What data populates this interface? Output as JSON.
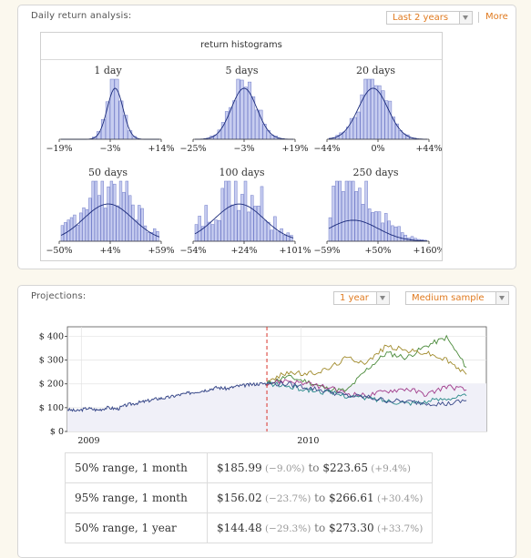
{
  "daily_pod": {
    "title": "Daily return analysis:",
    "range_select": "Last 2 years",
    "more_label": "More",
    "histogram_title": "return histograms",
    "histograms": [
      {
        "label": "1 day",
        "ticks": [
          "−19%",
          "−3%",
          "+14%"
        ]
      },
      {
        "label": "5 days",
        "ticks": [
          "−25%",
          "−3%",
          "+19%"
        ]
      },
      {
        "label": "20 days",
        "ticks": [
          "−44%",
          "0%",
          "+44%"
        ]
      },
      {
        "label": "50 days",
        "ticks": [
          "−50%",
          "+4%",
          "+59%"
        ]
      },
      {
        "label": "100 days",
        "ticks": [
          "−54%",
          "+24%",
          "+101%"
        ]
      },
      {
        "label": "250 days",
        "ticks": [
          "−59%",
          "+50%",
          "+160%"
        ]
      }
    ]
  },
  "projections_pod": {
    "title": "Projections:",
    "period_select": "1 year",
    "sample_select": "Medium sample",
    "chart_data": {
      "type": "line",
      "y_tick_labels": [
        "$ 400",
        "$ 300",
        "$ 200",
        "$ 100",
        "$ 0"
      ],
      "y_ticks": [
        400,
        300,
        200,
        100,
        0
      ],
      "x_tick_labels": [
        "2009",
        "2010"
      ],
      "ylim": [
        0,
        440
      ],
      "grid": true,
      "projection_start_marker": "dashed red vertical line",
      "history": {
        "x": [
          0.0,
          0.05,
          0.1,
          0.15,
          0.2,
          0.25,
          0.3,
          0.35,
          0.4,
          0.45,
          0.5,
          0.55,
          0.6,
          0.65,
          0.7,
          0.75,
          0.8,
          0.85,
          0.9,
          0.95,
          1.0
        ],
        "values": [
          92,
          86,
          98,
          90,
          100,
          95,
          112,
          120,
          128,
          138,
          142,
          152,
          160,
          168,
          175,
          185,
          180,
          190,
          195,
          200,
          202
        ]
      },
      "projections": [
        {
          "color": "#4a8a3a",
          "x": [
            1.0,
            1.1,
            1.2,
            1.3,
            1.4,
            1.5,
            1.6,
            1.7,
            1.8,
            1.9,
            2.0
          ],
          "values": [
            202,
            230,
            210,
            180,
            170,
            260,
            330,
            310,
            360,
            395,
            270
          ]
        },
        {
          "color": "#a08a2a",
          "x": [
            1.0,
            1.1,
            1.2,
            1.3,
            1.4,
            1.5,
            1.6,
            1.7,
            1.8,
            1.9,
            2.0
          ],
          "values": [
            202,
            250,
            240,
            260,
            310,
            290,
            360,
            340,
            330,
            300,
            240
          ]
        },
        {
          "color": "#a03a8a",
          "x": [
            1.0,
            1.1,
            1.2,
            1.3,
            1.4,
            1.5,
            1.6,
            1.7,
            1.8,
            1.9,
            2.0
          ],
          "values": [
            202,
            215,
            200,
            185,
            160,
            150,
            170,
            180,
            155,
            190,
            175
          ]
        },
        {
          "color": "#2a8a8a",
          "x": [
            1.0,
            1.1,
            1.2,
            1.3,
            1.4,
            1.5,
            1.6,
            1.7,
            1.8,
            1.9,
            2.0
          ],
          "values": [
            202,
            190,
            175,
            165,
            150,
            140,
            130,
            120,
            125,
            140,
            150
          ]
        },
        {
          "color": "#3a4a8a",
          "x": [
            1.0,
            1.1,
            1.2,
            1.3,
            1.4,
            1.5,
            1.6,
            1.7,
            1.8,
            1.9,
            2.0
          ],
          "values": [
            202,
            200,
            185,
            170,
            150,
            145,
            130,
            125,
            120,
            115,
            130
          ]
        }
      ]
    },
    "table": [
      {
        "label": "50% range, 1 month",
        "low": "$185.99",
        "low_pct": "(−9.0%)",
        "to": "to",
        "high": "$223.65",
        "high_pct": "(+9.4%)"
      },
      {
        "label": "95% range, 1 month",
        "low": "$156.02",
        "low_pct": "(−23.7%)",
        "to": "to",
        "high": "$266.61",
        "high_pct": "(+30.4%)"
      },
      {
        "label": "50% range, 1 year",
        "low": "$144.48",
        "low_pct": "(−29.3%)",
        "to": "to",
        "high": "$273.30",
        "high_pct": "(+33.7%)"
      }
    ]
  }
}
